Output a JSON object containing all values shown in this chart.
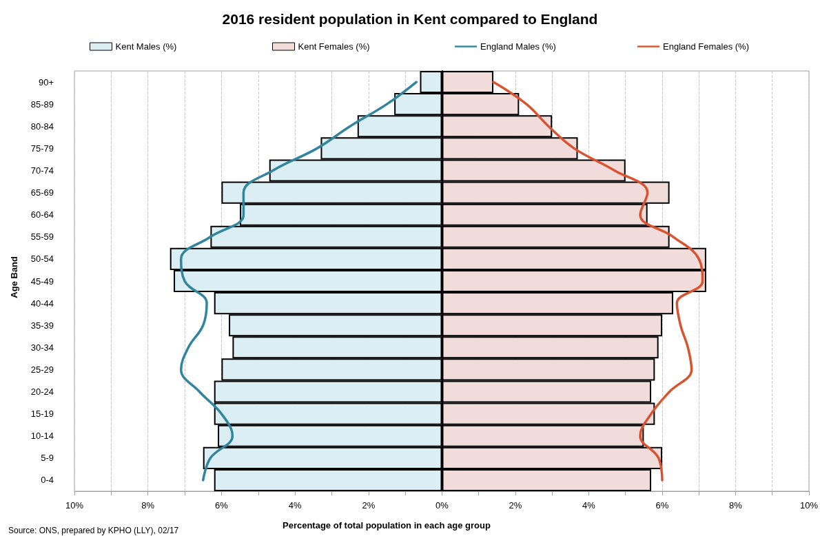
{
  "chart_data": [
    {
      "type": "bar",
      "orientation": "horizontal",
      "title": "2016 resident population in Kent compared to England",
      "xlabel": "Percentage of total population in each age group",
      "ylabel": "Age Band",
      "categories": [
        "90+",
        "85-89",
        "80-84",
        "75-79",
        "70-74",
        "65-69",
        "60-64",
        "55-59",
        "50-54",
        "45-49",
        "40-44",
        "35-39",
        "30-34",
        "25-29",
        "20-24",
        "15-19",
        "10-14",
        "5-9",
        "0-4"
      ],
      "series": [
        {
          "name": "Kent Males (%)",
          "color": "#daeef3",
          "values": [
            0.6,
            1.3,
            2.3,
            3.3,
            4.7,
            6.0,
            5.5,
            6.3,
            7.4,
            7.3,
            6.2,
            5.8,
            5.7,
            6.0,
            6.2,
            6.2,
            6.1,
            6.5,
            6.2
          ]
        },
        {
          "name": "England Males (%)",
          "type": "line",
          "color": "#31859c",
          "values": [
            0.7,
            1.5,
            2.5,
            3.4,
            4.6,
            5.4,
            5.4,
            6.3,
            7.1,
            7.0,
            6.4,
            6.5,
            6.9,
            7.1,
            6.6,
            6.0,
            5.7,
            6.3,
            6.5
          ]
        }
      ],
      "xlim": [
        10,
        0
      ],
      "xticks": [
        {
          "value": 10,
          "label": "10%"
        },
        {
          "value": 9,
          "label": null
        },
        {
          "value": 8,
          "label": "8%"
        },
        {
          "value": 7,
          "label": null
        },
        {
          "value": 6,
          "label": "6%"
        },
        {
          "value": 5,
          "label": null
        },
        {
          "value": 4,
          "label": "4%"
        },
        {
          "value": 3,
          "label": null
        },
        {
          "value": 2,
          "label": "2%"
        },
        {
          "value": 1,
          "label": null
        },
        {
          "value": 0,
          "label": "0%"
        }
      ],
      "grid": "x",
      "legend": "top",
      "marker": "none",
      "line_style": "solid",
      "annotations": [
        "Source: ONS, prepared by KPHO (LLY), 02/17"
      ]
    },
    {
      "type": "bar",
      "orientation": "horizontal",
      "categories": [
        null,
        null,
        null,
        null,
        null,
        null,
        null,
        null,
        null,
        null,
        null,
        null,
        null,
        null,
        null,
        null,
        null,
        null,
        null
      ],
      "series": [
        {
          "name": "Kent Females (%)",
          "color": "#f2dcdb",
          "values": [
            1.4,
            2.1,
            3.0,
            3.7,
            5.0,
            6.2,
            5.6,
            6.2,
            7.2,
            7.2,
            6.3,
            6.0,
            5.9,
            5.8,
            5.7,
            5.8,
            5.5,
            6.0,
            5.7
          ]
        },
        {
          "name": "England Females (%)",
          "type": "line",
          "color": "#d9532f",
          "values": [
            1.4,
            2.3,
            2.9,
            3.6,
            4.7,
            5.6,
            5.4,
            6.3,
            7.0,
            7.1,
            6.4,
            6.5,
            6.7,
            6.8,
            6.2,
            5.7,
            5.4,
            5.9,
            6.0
          ]
        }
      ],
      "xlim": [
        0,
        10
      ],
      "xticks": [
        {
          "value": 0,
          "label": null
        },
        {
          "value": 1,
          "label": null
        },
        {
          "value": 2,
          "label": "2%"
        },
        {
          "value": 3,
          "label": null
        },
        {
          "value": 4,
          "label": "4%"
        },
        {
          "value": 5,
          "label": null
        },
        {
          "value": 6,
          "label": "6%"
        },
        {
          "value": 7,
          "label": null
        },
        {
          "value": 8,
          "label": "8%"
        },
        {
          "value": 9,
          "label": null
        },
        {
          "value": 10,
          "label": "10%"
        }
      ],
      "grid": "x",
      "legend": "top",
      "marker": "none",
      "line_style": "solid"
    }
  ]
}
